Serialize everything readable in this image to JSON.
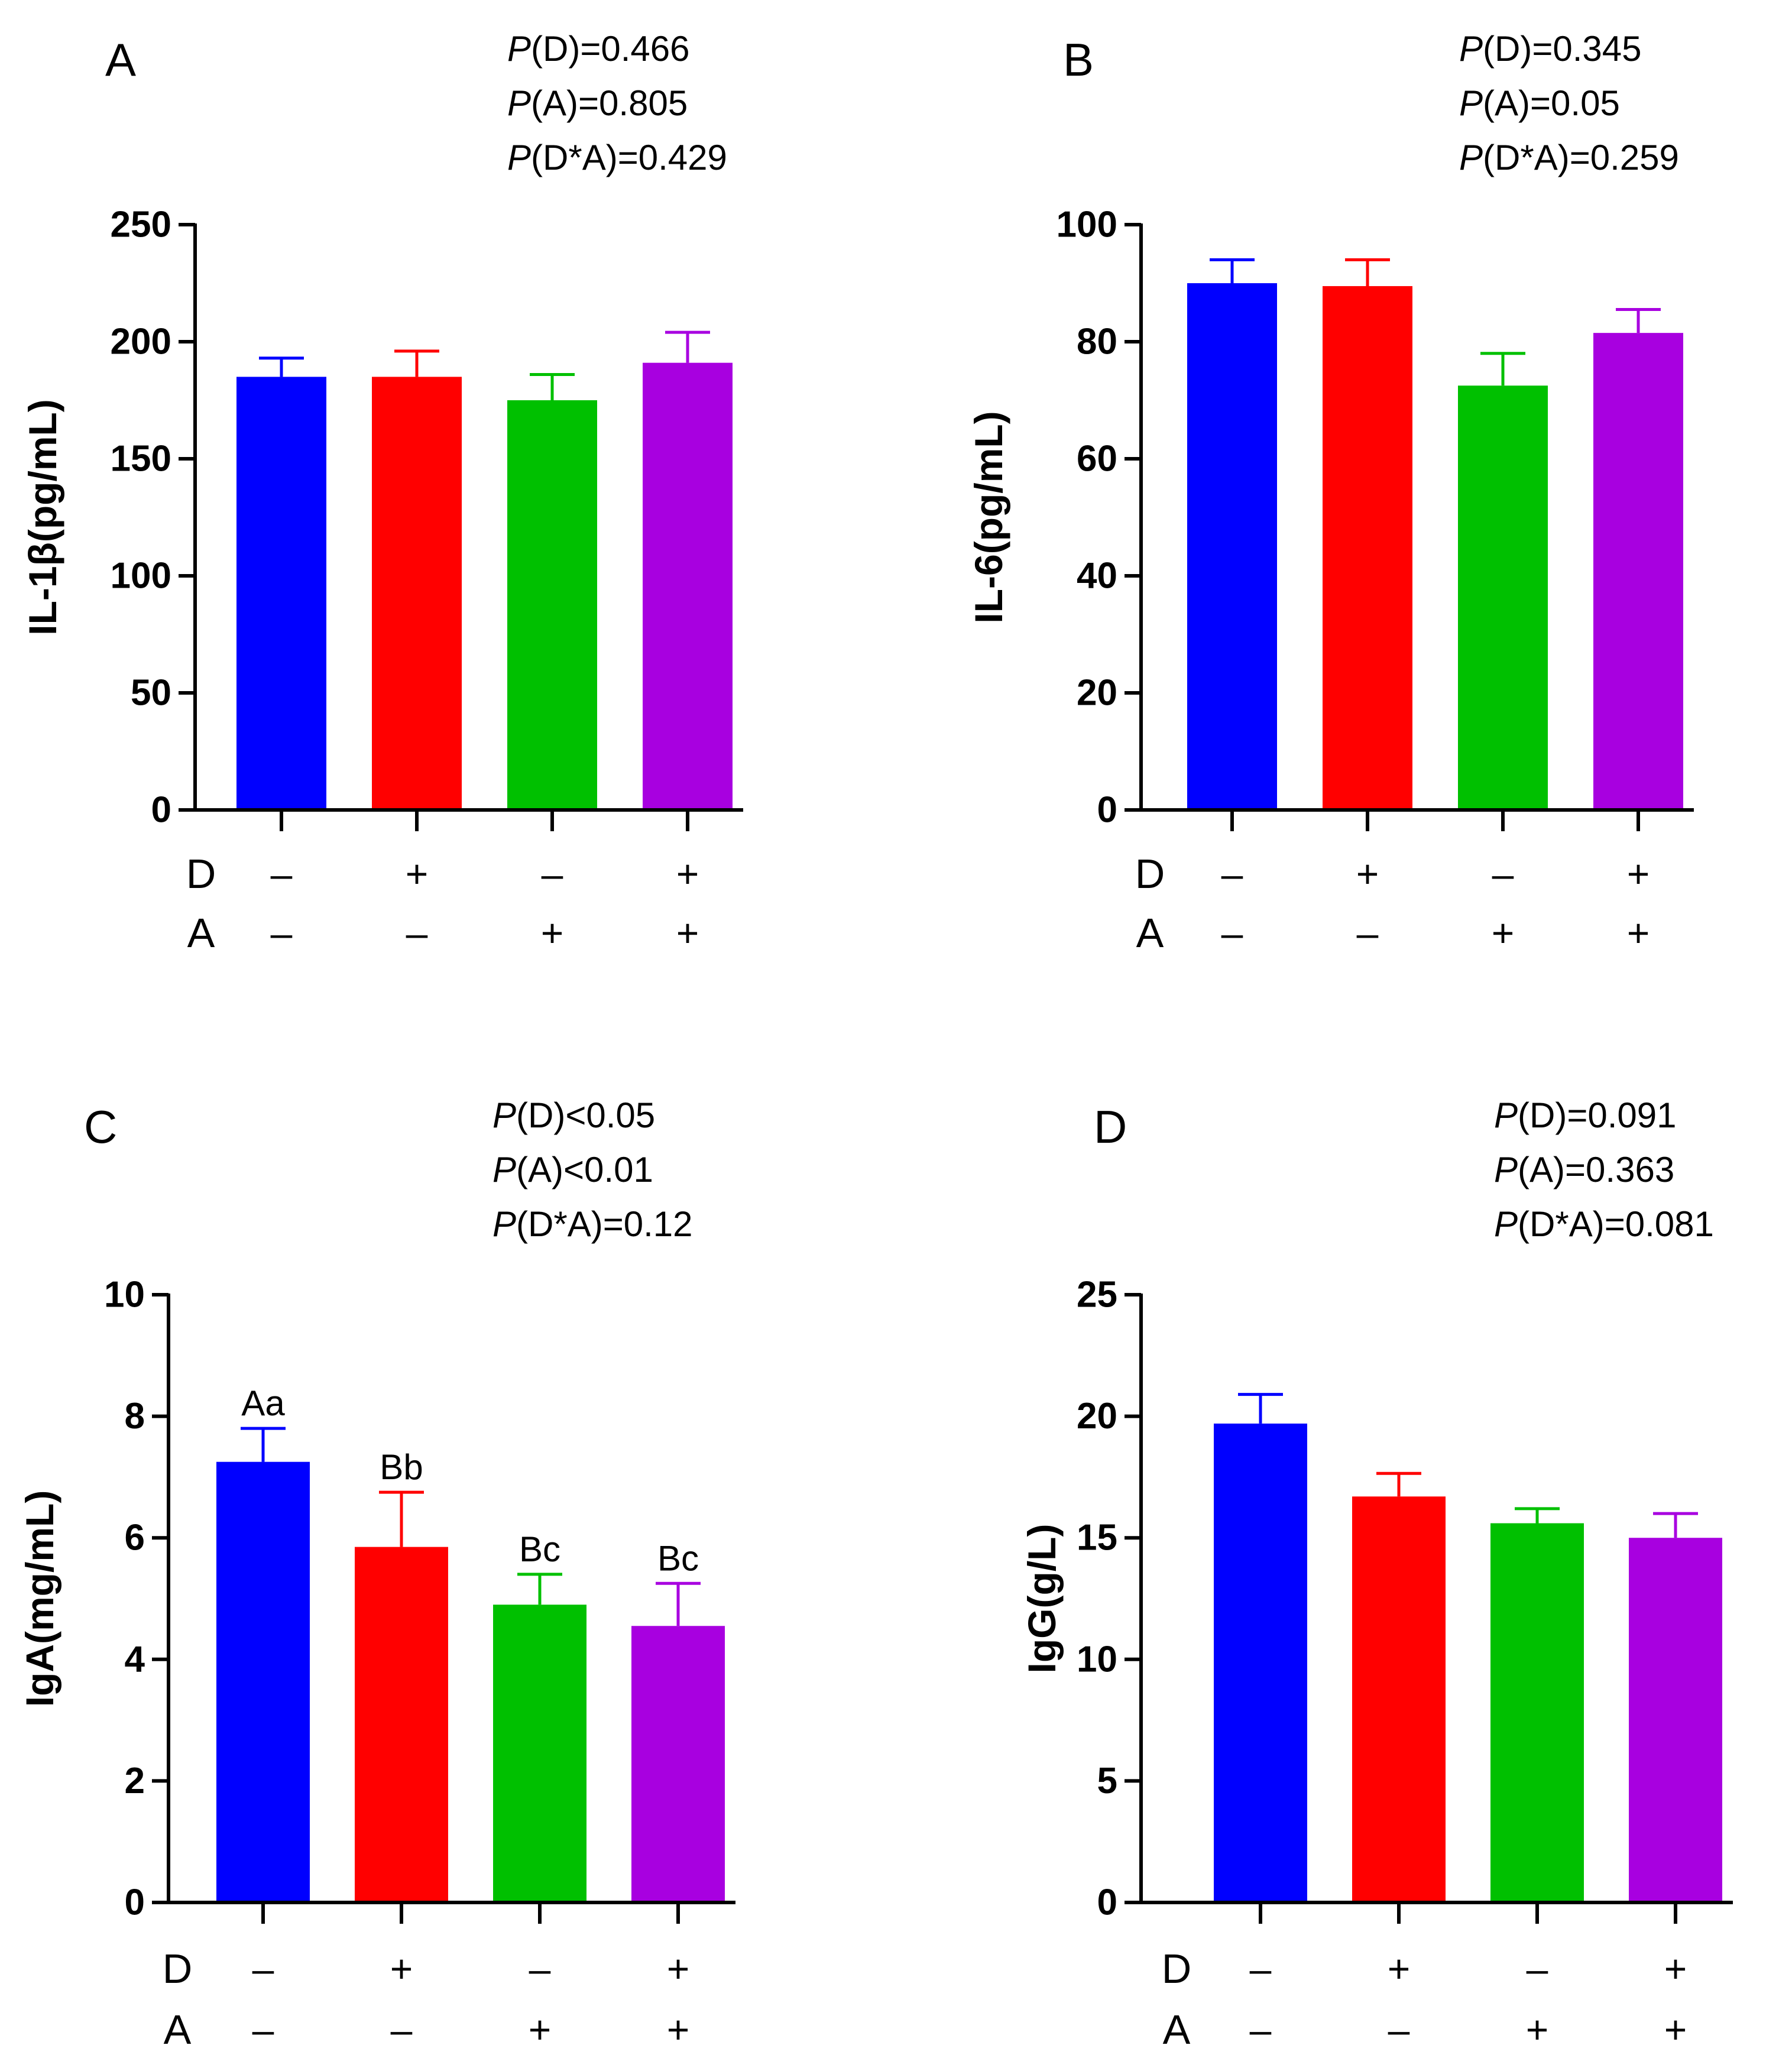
{
  "figure": {
    "background": "#ffffff",
    "treatment_factors": [
      "D",
      "A"
    ]
  },
  "chart_data": [
    {
      "type": "bar",
      "panel_label": "A",
      "ylabel": "IL-1β(pg/mL)",
      "ylim": [
        0,
        250
      ],
      "yticks": [
        0,
        50,
        100,
        150,
        200,
        250
      ],
      "pvalues": [
        {
          "italic": "P",
          "rest": "(D)=0.466"
        },
        {
          "italic": "P",
          "rest": "(A)=0.805"
        },
        {
          "italic": "P",
          "rest": "(D*A)=0.429"
        }
      ],
      "categories": [
        {
          "D": "–",
          "A": "–"
        },
        {
          "D": "+",
          "A": "–"
        },
        {
          "D": "–",
          "A": "+"
        },
        {
          "D": "+",
          "A": "+"
        }
      ],
      "values": [
        185,
        185,
        175,
        191
      ],
      "errors": [
        8,
        11,
        11,
        13
      ],
      "sig_labels": [
        "",
        "",
        "",
        ""
      ],
      "colors": [
        "#0000ff",
        "#ff0000",
        "#00c000",
        "#a800e0"
      ]
    },
    {
      "type": "bar",
      "panel_label": "B",
      "ylabel": "IL-6(pg/mL)",
      "ylim": [
        0,
        100
      ],
      "yticks": [
        0,
        20,
        40,
        60,
        80,
        100
      ],
      "pvalues": [
        {
          "italic": "P",
          "rest": "(D)=0.345"
        },
        {
          "italic": "P",
          "rest": "(A)=0.05"
        },
        {
          "italic": "P",
          "rest": "(D*A)=0.259"
        }
      ],
      "categories": [
        {
          "D": "–",
          "A": "–"
        },
        {
          "D": "+",
          "A": "–"
        },
        {
          "D": "–",
          "A": "+"
        },
        {
          "D": "+",
          "A": "+"
        }
      ],
      "values": [
        90,
        89.5,
        72.5,
        81.5
      ],
      "errors": [
        4,
        4.5,
        5.5,
        4
      ],
      "sig_labels": [
        "",
        "",
        "",
        ""
      ],
      "colors": [
        "#0000ff",
        "#ff0000",
        "#00c000",
        "#a800e0"
      ]
    },
    {
      "type": "bar",
      "panel_label": "C",
      "ylabel": "IgA(mg/mL)",
      "ylim": [
        0,
        10
      ],
      "yticks": [
        0,
        2,
        4,
        6,
        8,
        10
      ],
      "pvalues": [
        {
          "italic": "P",
          "rest": "(D)<0.05"
        },
        {
          "italic": "P",
          "rest": "(A)<0.01"
        },
        {
          "italic": "P",
          "rest": "(D*A)=0.12"
        }
      ],
      "categories": [
        {
          "D": "–",
          "A": "–"
        },
        {
          "D": "+",
          "A": "–"
        },
        {
          "D": "–",
          "A": "+"
        },
        {
          "D": "+",
          "A": "+"
        }
      ],
      "values": [
        7.25,
        5.85,
        4.9,
        4.55
      ],
      "errors": [
        0.55,
        0.9,
        0.5,
        0.7
      ],
      "sig_labels": [
        "Aa",
        "Bb",
        "Bc",
        "Bc"
      ],
      "colors": [
        "#0000ff",
        "#ff0000",
        "#00c000",
        "#a800e0"
      ]
    },
    {
      "type": "bar",
      "panel_label": "D",
      "ylabel": "IgG(g/L)",
      "ylim": [
        0,
        25
      ],
      "yticks": [
        0,
        5,
        10,
        15,
        20,
        25
      ],
      "pvalues": [
        {
          "italic": "P",
          "rest": "(D)=0.091"
        },
        {
          "italic": "P",
          "rest": "(A)=0.363"
        },
        {
          "italic": "P",
          "rest": "(D*A)=0.081"
        }
      ],
      "categories": [
        {
          "D": "–",
          "A": "–"
        },
        {
          "D": "+",
          "A": "–"
        },
        {
          "D": "–",
          "A": "+"
        },
        {
          "D": "+",
          "A": "+"
        }
      ],
      "values": [
        19.7,
        16.7,
        15.6,
        15.0
      ],
      "errors": [
        1.2,
        0.95,
        0.6,
        1.0
      ],
      "sig_labels": [
        "",
        "",
        "",
        ""
      ],
      "colors": [
        "#0000ff",
        "#ff0000",
        "#00c000",
        "#a800e0"
      ]
    }
  ]
}
